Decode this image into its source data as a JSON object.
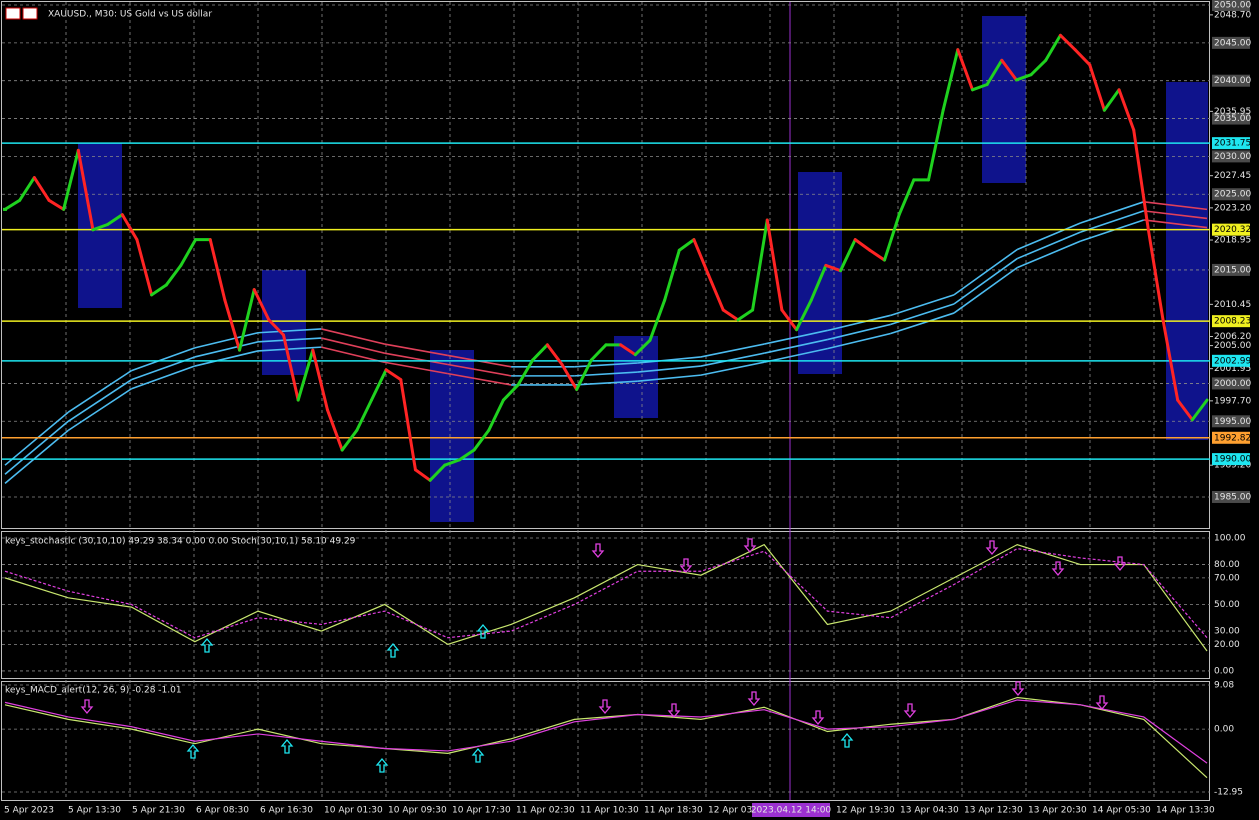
{
  "chart_data": [
    {
      "type": "line",
      "title": "XAUUSD., M30:  US Gold vs US dollar",
      "up_color": "#1fd21f",
      "down_color": "#ff2424",
      "values": [
        2023,
        2024.2,
        2027.2,
        2024.2,
        2023,
        2030.8,
        2020.3,
        2021,
        2022.3,
        2019,
        2011.7,
        2013,
        2015.6,
        2019,
        2019,
        2011,
        2004.4,
        2012.4,
        2008.4,
        2006.4,
        1997.8,
        2004.4,
        1996.5,
        1991.2,
        1993.8,
        1997.8,
        2001.8,
        2000.5,
        1988.6,
        1987.2,
        1989.2,
        1989.9,
        1991.2,
        1993.8,
        1997.8,
        1999.8,
        2003.1,
        2005.1,
        2002.5,
        1999.2,
        2003.1,
        2005.1,
        2005.1,
        2003.8,
        2005.7,
        2011,
        2017.6,
        2019,
        2014.3,
        2009.7,
        2008.4,
        2009.7,
        2021.6,
        2009.7,
        2007.1,
        2011,
        2015.6,
        2014.9,
        2019,
        2017.6,
        2016.3,
        2022.3,
        2026.9,
        2026.9,
        2036.1,
        2044.1,
        2038.8,
        2039.5,
        2042.7,
        2040.1,
        2040.8,
        2042.7,
        2046,
        2044.1,
        2042.1,
        2036.1,
        2038.8,
        2033.5,
        2020.3,
        2008.4,
        1997.8,
        1995.2,
        1997.8
      ],
      "ma_up_color": "#4cbcf0",
      "ma_down_color": "#e0405a",
      "ma_series": [
        {
          "values": [
            1989.2,
            1996.2,
            2001.7,
            2004.7,
            2006.7,
            2007.2,
            2005.2,
            2003.7,
            2002.2,
            2002.2,
            2002.7,
            2003.5,
            2005.2,
            2007,
            2009,
            2011.7,
            2017.7,
            2021.2,
            2024,
            2023
          ]
        },
        {
          "values": [
            1988,
            1995,
            2000.5,
            2003.5,
            2005.5,
            2006,
            2004,
            2002.5,
            2001,
            2001,
            2001.5,
            2002.3,
            2004,
            2005.8,
            2007.8,
            2010.5,
            2016.5,
            2020,
            2022.8,
            2021.8
          ]
        },
        {
          "values": [
            1986.8,
            1993.8,
            1999.3,
            2002.3,
            2004.3,
            2004.8,
            2002.8,
            2001.3,
            1999.8,
            1999.8,
            2000.3,
            2001.1,
            2002.8,
            2004.6,
            2006.6,
            2009.3,
            2015.3,
            2018.8,
            2021.6,
            2020.6
          ]
        }
      ],
      "ylim": [
        1980.9,
        2050.4
      ],
      "grid": true,
      "yticks": [
        {
          "value": 2050,
          "label": "2050.00"
        },
        {
          "value": 2045,
          "label": "2045.00"
        },
        {
          "value": 2040,
          "label": "2040.00"
        },
        {
          "value": 2035,
          "label": "2035.00"
        },
        {
          "value": 2030,
          "label": "2030.00"
        },
        {
          "value": 2025,
          "label": "2025.00"
        },
        {
          "value": 2015,
          "label": "2015.00"
        },
        {
          "value": 2000,
          "label": "2000.00"
        },
        {
          "value": 1995,
          "label": "1995.00"
        },
        {
          "value": 1985,
          "label": "1985.00"
        }
      ],
      "extra_labels": [
        {
          "value": 2048.7,
          "label": "2048.70"
        },
        {
          "value": 2035.95,
          "label": "2035.95"
        },
        {
          "value": 2027.45,
          "label": "2027.45"
        },
        {
          "value": 2023.2,
          "label": "2023.20"
        },
        {
          "value": 2018.95,
          "label": "2018.95"
        },
        {
          "value": 2010.45,
          "label": "2010.45"
        },
        {
          "value": 2006.2,
          "label": "2006.20"
        },
        {
          "value": 2005,
          "label": "2005.00"
        },
        {
          "value": 2001.95,
          "label": "2001.95"
        },
        {
          "value": 1997.7,
          "label": "1997.70"
        },
        {
          "value": 1989.2,
          "label": "1989.20"
        }
      ],
      "levels": [
        {
          "value": 2031.75,
          "label": "2031.75",
          "color": "#1ee6f0"
        },
        {
          "value": 2020.32,
          "label": "2020.32",
          "color": "#f0f020"
        },
        {
          "value": 2008.23,
          "label": "2008.23",
          "color": "#f0f020"
        },
        {
          "value": 2002.99,
          "label": "2002.99",
          "color": "#1ee6f0"
        },
        {
          "value": 1992.82,
          "label": "1992.82",
          "color": "#ffa030"
        },
        {
          "value": 1990,
          "label": "1990.00",
          "color": "#1ee6f0"
        }
      ]
    },
    {
      "type": "line",
      "title": "keys_stochastic (30,10,10) 49.29 38.34 0.00 0.00 Stoch(30,10,1) 58.10 49.29",
      "series": [
        {
          "color": "#c8e66e",
          "values": [
            70,
            55,
            48,
            22,
            45,
            30,
            50,
            20,
            35,
            55,
            80,
            72,
            95,
            35,
            45,
            70,
            95,
            80,
            80,
            15
          ]
        },
        {
          "color": "#e040e0",
          "dashed": true,
          "values": [
            75,
            60,
            50,
            25,
            40,
            35,
            45,
            25,
            30,
            50,
            75,
            75,
            90,
            45,
            40,
            65,
            92,
            85,
            80,
            25
          ]
        }
      ],
      "ylim": [
        -5.3,
        104.5
      ],
      "grid": true,
      "yticks": [
        {
          "value": 100,
          "label": "100.00"
        },
        {
          "value": 80,
          "label": "80.00"
        },
        {
          "value": 70,
          "label": "70.00"
        },
        {
          "value": 50,
          "label": "50.00"
        },
        {
          "value": 30,
          "label": "30.00"
        },
        {
          "value": 20,
          "label": "20.00"
        },
        {
          "value": 0,
          "label": "0.00"
        }
      ]
    },
    {
      "type": "line",
      "title": "keys_MACD_alert(12, 26, 9) -0.28 -1.01",
      "series": [
        {
          "color": "#c8e66e",
          "values": [
            5,
            2,
            0,
            -3,
            0,
            -3,
            -4,
            -5,
            -2,
            2,
            3,
            2,
            4.5,
            -0.5,
            1,
            2,
            6.5,
            5,
            2,
            -10
          ]
        },
        {
          "color": "#e040e0",
          "values": [
            5.5,
            2.5,
            0.5,
            -2.5,
            -1,
            -2.5,
            -4,
            -4.5,
            -2.5,
            1.5,
            3,
            2.5,
            4,
            0,
            0.5,
            2,
            6,
            5,
            2.5,
            -7
          ]
        }
      ],
      "ylim": [
        -14.6,
        9.7
      ],
      "grid": true,
      "yticks": [
        {
          "value": 9.08,
          "label": "9.08"
        },
        {
          "value": 0,
          "label": "0.00"
        },
        {
          "value": -12.95,
          "label": "-12.95"
        }
      ]
    }
  ],
  "x_axis": {
    "categories": [
      "5 Apr 2023",
      "5 Apr 13:30",
      "5 Apr 21:30",
      "6 Apr 08:30",
      "6 Apr 16:30",
      "10 Apr 01:30",
      "10 Apr 09:30",
      "10 Apr 17:30",
      "11 Apr 02:30",
      "11 Apr 10:30",
      "11 Apr 18:30",
      "12 Apr 03:30",
      null,
      "12 Apr 19:30",
      "13 Apr 04:30",
      "13 Apr 12:30",
      "13 Apr 20:30",
      "14 Apr 05:30",
      "14 Apr 13:30"
    ],
    "crosshair_label": "2023.04.12 14:00"
  }
}
